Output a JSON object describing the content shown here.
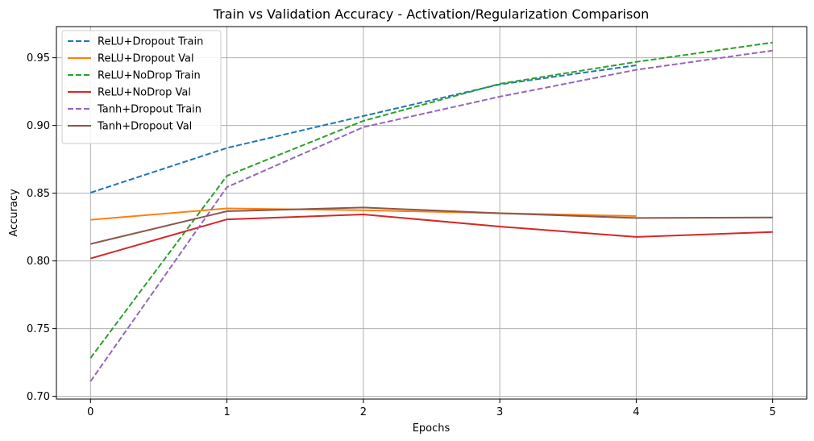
{
  "chart_data": {
    "type": "line",
    "title": "Train vs Validation Accuracy - Activation/Regularization Comparison",
    "xlabel": "Epochs",
    "ylabel": "Accuracy",
    "xlim": [
      -0.25,
      5.25
    ],
    "ylim": [
      0.698,
      0.973
    ],
    "xticks": [
      0,
      1,
      2,
      3,
      4,
      5
    ],
    "yticks": [
      0.7,
      0.75,
      0.8,
      0.85,
      0.9,
      0.95
    ],
    "xtick_labels": [
      "0",
      "1",
      "2",
      "3",
      "4",
      "5"
    ],
    "ytick_labels": [
      "0.70",
      "0.75",
      "0.80",
      "0.85",
      "0.90",
      "0.95"
    ],
    "grid": true,
    "legend_position": "top-left",
    "series": [
      {
        "name": "ReLU+Dropout Train",
        "color": "#1f77b4",
        "style": "dashed",
        "x": [
          0,
          1,
          2,
          3,
          4
        ],
        "y": [
          0.8504,
          0.8834,
          0.907,
          0.9303,
          0.9444
        ]
      },
      {
        "name": "ReLU+Dropout Val",
        "color": "#ff7f0e",
        "style": "solid",
        "x": [
          0,
          1,
          2,
          3,
          4
        ],
        "y": [
          0.8304,
          0.8388,
          0.8374,
          0.8352,
          0.8331
        ]
      },
      {
        "name": "ReLU+NoDrop Train",
        "color": "#2ca02c",
        "style": "dashed",
        "x": [
          0,
          1,
          2,
          3,
          4,
          5
        ],
        "y": [
          0.7283,
          0.8628,
          0.9034,
          0.9308,
          0.9469,
          0.9613
        ]
      },
      {
        "name": "ReLU+NoDrop Val",
        "color": "#d62728",
        "style": "solid",
        "x": [
          0,
          1,
          2,
          3,
          4,
          5
        ],
        "y": [
          0.8018,
          0.8307,
          0.8343,
          0.8254,
          0.8177,
          0.8214
        ]
      },
      {
        "name": "Tanh+Dropout Train",
        "color": "#9467bd",
        "style": "dashed",
        "x": [
          0,
          1,
          2,
          3,
          4,
          5
        ],
        "y": [
          0.7111,
          0.8545,
          0.8988,
          0.9213,
          0.9411,
          0.9553
        ]
      },
      {
        "name": "Tanh+Dropout Val",
        "color": "#8c564b",
        "style": "solid",
        "x": [
          0,
          1,
          2,
          3,
          4,
          5
        ],
        "y": [
          0.8125,
          0.8367,
          0.8394,
          0.8352,
          0.8317,
          0.8321
        ]
      }
    ]
  }
}
